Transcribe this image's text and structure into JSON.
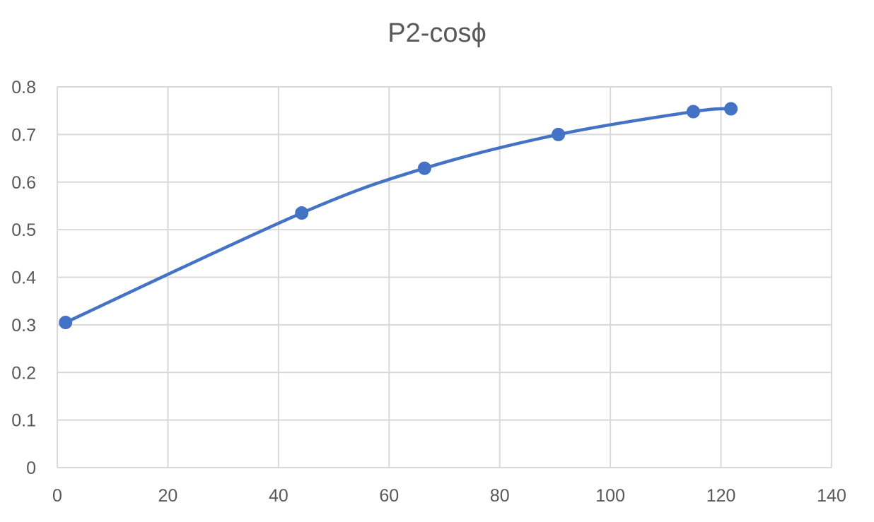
{
  "chart_data": {
    "type": "line",
    "title": "P2-cosϕ",
    "xlabel": "",
    "ylabel": "",
    "xlim": [
      0,
      140
    ],
    "ylim": [
      0,
      0.8
    ],
    "xticks": [
      0,
      20,
      40,
      60,
      80,
      100,
      120,
      140
    ],
    "yticks": [
      0,
      0.1,
      0.2,
      0.3,
      0.4,
      0.5,
      0.6,
      0.7,
      0.8
    ],
    "grid": true,
    "legend": "none",
    "series": [
      {
        "color": "#4472C4",
        "marker": "circle",
        "smooth": true,
        "points": [
          {
            "x": 1.5,
            "y": 0.305
          },
          {
            "x": 44.2,
            "y": 0.535
          },
          {
            "x": 66.4,
            "y": 0.629
          },
          {
            "x": 90.6,
            "y": 0.7
          },
          {
            "x": 115.0,
            "y": 0.748
          },
          {
            "x": 121.8,
            "y": 0.754
          }
        ]
      }
    ]
  }
}
